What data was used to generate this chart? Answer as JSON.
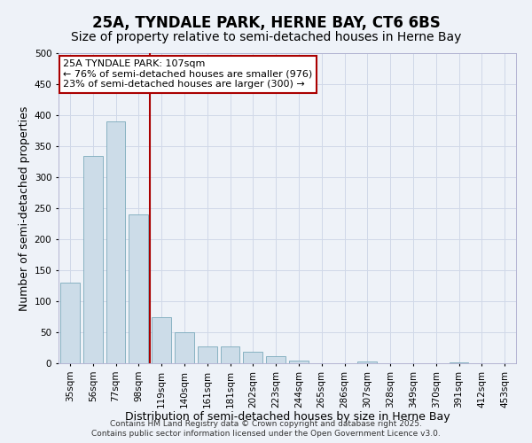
{
  "title1": "25A, TYNDALE PARK, HERNE BAY, CT6 6BS",
  "title2": "Size of property relative to semi-detached houses in Herne Bay",
  "xlabel": "Distribution of semi-detached houses by size in Herne Bay",
  "ylabel": "Number of semi-detached properties",
  "bar_values": [
    130,
    335,
    390,
    240,
    75,
    50,
    27,
    27,
    19,
    12,
    4,
    0,
    0,
    3,
    0,
    0,
    0,
    1,
    0,
    0
  ],
  "bin_labels": [
    "35sqm",
    "56sqm",
    "77sqm",
    "98sqm",
    "119sqm",
    "140sqm",
    "161sqm",
    "181sqm",
    "202sqm",
    "223sqm",
    "244sqm",
    "265sqm",
    "286sqm",
    "307sqm",
    "328sqm",
    "349sqm",
    "370sqm",
    "391sqm",
    "412sqm",
    "453sqm"
  ],
  "bar_color": "#ccdce8",
  "bar_edge_color": "#7aaabb",
  "grid_color": "#d0d8e8",
  "background_color": "#eef2f8",
  "vline_x": 3.5,
  "vline_color": "#aa0000",
  "annotation_line1": "25A TYNDALE PARK: 107sqm",
  "annotation_line2": "← 76% of semi-detached houses are smaller (976)",
  "annotation_line3": "23% of semi-detached houses are larger (300) →",
  "annotation_box_facecolor": "#ffffff",
  "annotation_box_edgecolor": "#aa0000",
  "ylim": [
    0,
    500
  ],
  "yticks": [
    0,
    50,
    100,
    150,
    200,
    250,
    300,
    350,
    400,
    450,
    500
  ],
  "footer_text": "Contains HM Land Registry data © Crown copyright and database right 2025.\nContains public sector information licensed under the Open Government Licence v3.0.",
  "title1_fontsize": 12,
  "title2_fontsize": 10,
  "axis_label_fontsize": 9,
  "tick_fontsize": 7.5,
  "annotation_fontsize": 8,
  "footer_fontsize": 6.5
}
